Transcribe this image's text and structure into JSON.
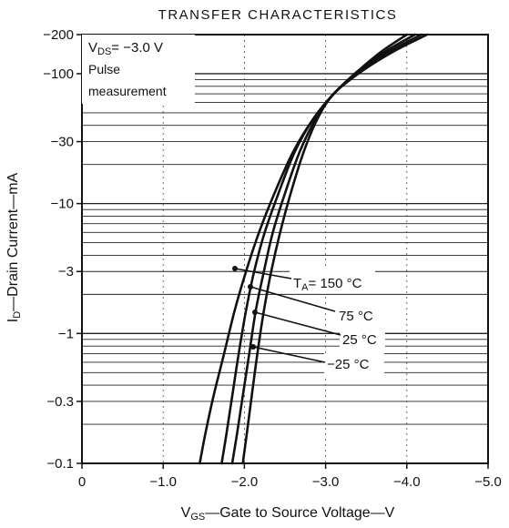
{
  "chart_data": {
    "type": "line",
    "title": "TRANSFER CHARACTERISTICS",
    "xlabel": {
      "main": "V",
      "sub": "GS",
      "rest": "—Gate to Source Voltage—V"
    },
    "ylabel": {
      "main": "I",
      "sub": "D",
      "rest": "—Drain Current—mA"
    },
    "xlim": [
      0,
      -5.0
    ],
    "ylim": [
      -0.1,
      -200
    ],
    "y_scale": "log",
    "grid": true,
    "x_ticks": [
      {
        "value": 0,
        "label": "0"
      },
      {
        "value": -1.0,
        "label": "−1.0"
      },
      {
        "value": -2.0,
        "label": "−2.0"
      },
      {
        "value": -3.0,
        "label": "−3.0"
      },
      {
        "value": -4.0,
        "label": "−4.0"
      },
      {
        "value": -5.0,
        "label": "−5.0"
      }
    ],
    "y_ticks": [
      {
        "value": -200,
        "label": "−200"
      },
      {
        "value": -100,
        "label": "−100"
      },
      {
        "value": -30,
        "label": "−30"
      },
      {
        "value": -10,
        "label": "−10"
      },
      {
        "value": -3,
        "label": "−3"
      },
      {
        "value": -1,
        "label": "−1"
      },
      {
        "value": -0.3,
        "label": "−0.3"
      },
      {
        "value": -0.1,
        "label": "−0.1"
      }
    ],
    "annotation": {
      "line1_main": "V",
      "line1_sub": "DS",
      "line1_rest": "= −3.0 V",
      "line2": "Pulse",
      "line3": "measurement"
    },
    "series": [
      {
        "name_main": "T",
        "name_sub": "A",
        "name_rest": "= 150 °C",
        "x": [
          -1.45,
          -1.52,
          -1.62,
          -1.75,
          -1.88,
          -2.02,
          -2.18,
          -2.37,
          -2.6,
          -2.85,
          -3.1,
          -3.4,
          -3.7,
          -4.0
        ],
        "y": [
          -0.1,
          -0.17,
          -0.33,
          -0.7,
          -1.5,
          -3,
          -6,
          -12,
          -25,
          -45,
          -70,
          -105,
          -150,
          -200
        ]
      },
      {
        "name_main": "",
        "name_sub": "",
        "name_rest": "75 °C",
        "x": [
          -1.72,
          -1.78,
          -1.85,
          -1.93,
          -2.02,
          -2.12,
          -2.25,
          -2.42,
          -2.62,
          -2.85,
          -3.1,
          -3.4,
          -3.75,
          -4.1
        ],
        "y": [
          -0.1,
          -0.17,
          -0.33,
          -0.7,
          -1.5,
          -3,
          -6,
          -12,
          -25,
          -45,
          -70,
          -105,
          -150,
          -200
        ]
      },
      {
        "name_main": "",
        "name_sub": "",
        "name_rest": "25 °C",
        "x": [
          -1.85,
          -1.91,
          -1.98,
          -2.06,
          -2.14,
          -2.24,
          -2.35,
          -2.5,
          -2.68,
          -2.88,
          -3.1,
          -3.42,
          -3.8,
          -4.18
        ],
        "y": [
          -0.1,
          -0.17,
          -0.33,
          -0.7,
          -1.5,
          -3,
          -6,
          -12,
          -25,
          -45,
          -70,
          -105,
          -150,
          -200
        ]
      },
      {
        "name_main": "",
        "name_sub": "",
        "name_rest": "−25 °C",
        "x": [
          -1.98,
          -2.03,
          -2.09,
          -2.16,
          -2.24,
          -2.33,
          -2.44,
          -2.57,
          -2.73,
          -2.9,
          -3.1,
          -3.45,
          -3.85,
          -4.25
        ],
        "y": [
          -0.1,
          -0.17,
          -0.33,
          -0.7,
          -1.5,
          -3,
          -6,
          -12,
          -25,
          -45,
          -70,
          -105,
          -150,
          -200
        ]
      }
    ]
  }
}
